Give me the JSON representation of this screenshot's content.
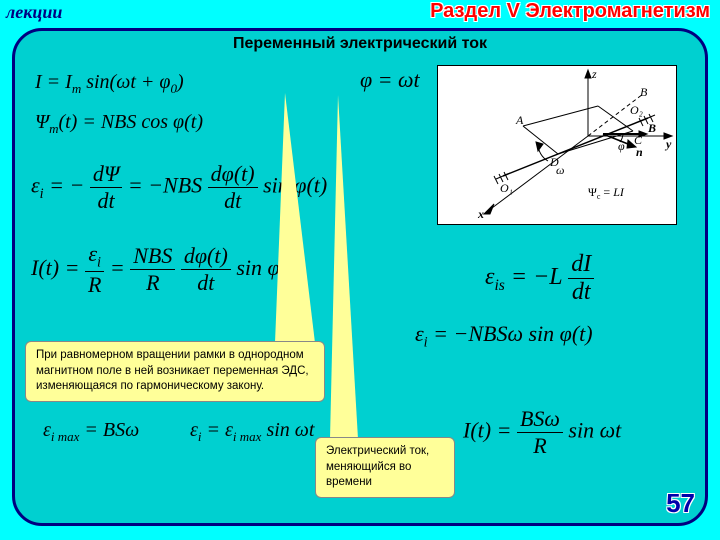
{
  "header": {
    "lectures": "лекции",
    "section": "Раздел V Электромагнетизм"
  },
  "subtitle": "Переменный электрический ток",
  "formulas": {
    "f1": "I = I<sub>m</sub> sin(ωt + φ<sub>0</sub>)",
    "f2": "Ψ<sub>m</sub>(t) = NBS cos φ(t)",
    "f3_lhs_num": "dΨ",
    "f3_lhs_den": "dt",
    "f3_mid": "−NBS",
    "f3_rhs_num": "dφ(t)",
    "f3_rhs_den": "dt",
    "f3_tail": "sin φ(t)",
    "f4_lhs": "I(t) =",
    "f4_a_num": "ε<sub>i</sub>",
    "f4_a_den": "R",
    "f4_b_num": "NBS",
    "f4_b_den": "R",
    "f4_c_num": "dφ(t)",
    "f4_c_den": "dt",
    "f4_tail": "sin φ(t)",
    "f5": "φ = ωt",
    "f6_lhs": "ε<sub>is</sub> = −L",
    "f6_num": "dI",
    "f6_den": "dt",
    "f7": "ε<sub>i</sub> = −NBSω sin φ(t)",
    "f8": "ε<sub>i max</sub> = BSω",
    "f9": "ε<sub>i</sub> = ε<sub>i max</sub> sin ωt",
    "f10_lhs": "I(t) =",
    "f10_num": "BSω",
    "f10_den": "R",
    "f10_tail": "sin ωt"
  },
  "callout1": "При равномерном вращении рамки в однородном магнитном поле в ней возникает переменная ЭДС, изменяющаяся по гармоническому закону.",
  "callout2": "Электрический ток, меняющийся во времени",
  "page": "57",
  "diagram": {
    "labels": {
      "z": "z",
      "y": "y",
      "x": "x",
      "A": "A",
      "B": "B",
      "C": "C",
      "D": "D",
      "O1": "O₁",
      "O2": "O₂",
      "n": "n",
      "Bvec": "B",
      "omega": "ω",
      "phi": "φ",
      "flux": "Ψ<sub>c</sub> = LI"
    },
    "colors": {
      "line": "#000000",
      "bg": "#ffffff"
    },
    "font_size": 11
  },
  "styling": {
    "background": "#00ffff",
    "panel_bg": "#00d0d0",
    "panel_border": "#000080",
    "callout_bg": "#ffff99",
    "title_color": "#ff0000",
    "pagenum_color": "#0000aa"
  }
}
